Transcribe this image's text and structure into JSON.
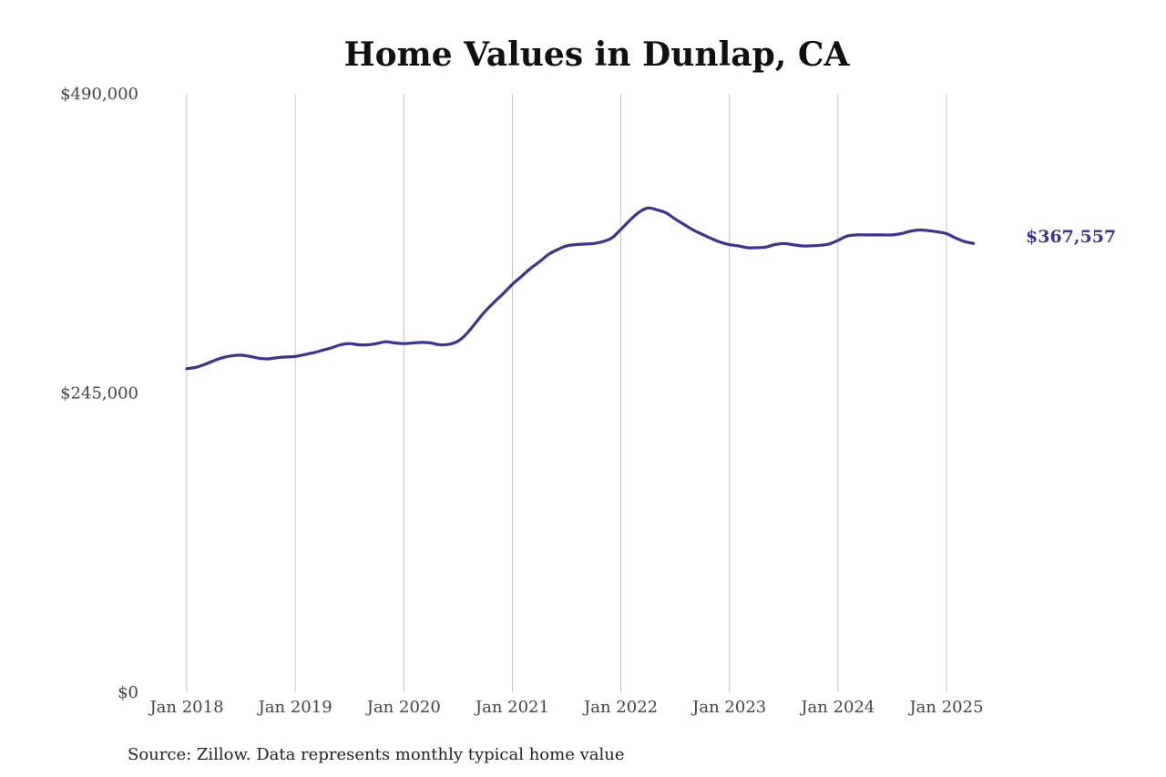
{
  "chart_data": {
    "type": "line",
    "title": "Home Values in Dunlap, CA",
    "xlabel": "",
    "ylabel": "",
    "ylim": [
      0,
      490000
    ],
    "yticks": [
      {
        "value": 0,
        "label": "$0"
      },
      {
        "value": 245000,
        "label": "$245,000"
      },
      {
        "value": 490000,
        "label": "$490,000"
      }
    ],
    "xticks": [
      {
        "value": "2018-01",
        "label": "Jan 2018"
      },
      {
        "value": "2019-01",
        "label": "Jan 2019"
      },
      {
        "value": "2020-01",
        "label": "Jan 2020"
      },
      {
        "value": "2021-01",
        "label": "Jan 2021"
      },
      {
        "value": "2022-01",
        "label": "Jan 2022"
      },
      {
        "value": "2023-01",
        "label": "Jan 2023"
      },
      {
        "value": "2024-01",
        "label": "Jan 2024"
      },
      {
        "value": "2025-01",
        "label": "Jan 2025"
      }
    ],
    "grid": "vertical",
    "legend": "none",
    "series": [
      {
        "color": "#3a3496",
        "points": [
          [
            "2018-01",
            265000
          ],
          [
            "2018-02",
            266000
          ],
          [
            "2018-03",
            268500
          ],
          [
            "2018-04",
            271500
          ],
          [
            "2018-05",
            274000
          ],
          [
            "2018-06",
            275500
          ],
          [
            "2018-07",
            276000
          ],
          [
            "2018-08",
            275000
          ],
          [
            "2018-09",
            273500
          ],
          [
            "2018-10",
            273000
          ],
          [
            "2018-11",
            274000
          ],
          [
            "2018-12",
            274500
          ],
          [
            "2019-01",
            275000
          ],
          [
            "2019-02",
            276500
          ],
          [
            "2019-03",
            278000
          ],
          [
            "2019-04",
            280000
          ],
          [
            "2019-05",
            282000
          ],
          [
            "2019-06",
            284500
          ],
          [
            "2019-07",
            285500
          ],
          [
            "2019-08",
            284500
          ],
          [
            "2019-09",
            284500
          ],
          [
            "2019-10",
            285500
          ],
          [
            "2019-11",
            287000
          ],
          [
            "2019-12",
            286000
          ],
          [
            "2020-01",
            285500
          ],
          [
            "2020-02",
            286000
          ],
          [
            "2020-03",
            286500
          ],
          [
            "2020-04",
            286000
          ],
          [
            "2020-05",
            284500
          ],
          [
            "2020-06",
            285000
          ],
          [
            "2020-07",
            287500
          ],
          [
            "2020-08",
            294000
          ],
          [
            "2020-09",
            303000
          ],
          [
            "2020-10",
            312000
          ],
          [
            "2020-11",
            319500
          ],
          [
            "2020-12",
            326500
          ],
          [
            "2021-01",
            334000
          ],
          [
            "2021-02",
            340500
          ],
          [
            "2021-03",
            347000
          ],
          [
            "2021-04",
            352500
          ],
          [
            "2021-05",
            358500
          ],
          [
            "2021-06",
            362500
          ],
          [
            "2021-07",
            365500
          ],
          [
            "2021-08",
            366500
          ],
          [
            "2021-09",
            367000
          ],
          [
            "2021-10",
            367500
          ],
          [
            "2021-11",
            369000
          ],
          [
            "2021-12",
            372000
          ],
          [
            "2022-01",
            379000
          ],
          [
            "2022-02",
            386500
          ],
          [
            "2022-03",
            393000
          ],
          [
            "2022-04",
            396500
          ],
          [
            "2022-05",
            395000
          ],
          [
            "2022-06",
            392500
          ],
          [
            "2022-07",
            387500
          ],
          [
            "2022-08",
            383000
          ],
          [
            "2022-09",
            378500
          ],
          [
            "2022-10",
            375000
          ],
          [
            "2022-11",
            371500
          ],
          [
            "2022-12",
            368500
          ],
          [
            "2023-01",
            366500
          ],
          [
            "2023-02",
            365500
          ],
          [
            "2023-03",
            364000
          ],
          [
            "2023-04",
            364000
          ],
          [
            "2023-05",
            364500
          ],
          [
            "2023-06",
            366500
          ],
          [
            "2023-07",
            367500
          ],
          [
            "2023-08",
            366500
          ],
          [
            "2023-09",
            365500
          ],
          [
            "2023-10",
            365500
          ],
          [
            "2023-11",
            366000
          ],
          [
            "2023-12",
            367000
          ],
          [
            "2024-01",
            370000
          ],
          [
            "2024-02",
            373500
          ],
          [
            "2024-03",
            374500
          ],
          [
            "2024-04",
            374500
          ],
          [
            "2024-05",
            374500
          ],
          [
            "2024-06",
            374500
          ],
          [
            "2024-07",
            374500
          ],
          [
            "2024-08",
            375500
          ],
          [
            "2024-09",
            377500
          ],
          [
            "2024-10",
            378500
          ],
          [
            "2024-11",
            378000
          ],
          [
            "2024-12",
            377000
          ],
          [
            "2025-01",
            375500
          ],
          [
            "2025-02",
            372000
          ],
          [
            "2025-03",
            369000
          ],
          [
            "2025-04",
            367557
          ]
        ]
      }
    ],
    "end_label": "$367,557",
    "source_note": "Source: Zillow. Data represents monthly typical home value"
  }
}
